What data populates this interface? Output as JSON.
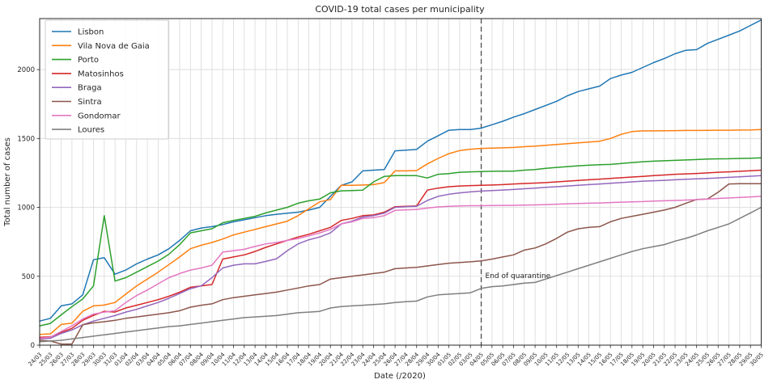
{
  "figure": {
    "title": "COVID-19 total cases per municipality",
    "xlabel": "Date (/2020)",
    "ylabel": "Total number of cases",
    "background_color": "#ffffff",
    "grid_color": "#d9d9d9",
    "spine_color": "#262626",
    "text_color": "#262626"
  },
  "chart_data": {
    "type": "line",
    "title": "COVID-19 total cases per municipality",
    "xlabel": "Date (/2020)",
    "ylabel": "Total number of cases",
    "grid": true,
    "legend_position": "upper left",
    "ylim": [
      0,
      2370
    ],
    "yticks": [
      0,
      500,
      1000,
      1500,
      2000
    ],
    "vline": {
      "x": "04/05",
      "label": "End of quarantine",
      "style": "dashed",
      "color": "#4d4d4d"
    },
    "x": [
      "24/03",
      "25/03",
      "26/03",
      "27/03",
      "28/03",
      "29/03",
      "30/03",
      "31/03",
      "01/04",
      "02/04",
      "03/04",
      "04/04",
      "05/04",
      "06/04",
      "07/04",
      "08/04",
      "09/04",
      "10/04",
      "11/04",
      "12/04",
      "13/04",
      "14/04",
      "15/04",
      "16/04",
      "17/04",
      "18/04",
      "19/04",
      "20/04",
      "21/04",
      "22/04",
      "23/04",
      "24/04",
      "25/04",
      "26/04",
      "27/04",
      "28/04",
      "29/04",
      "30/04",
      "01/05",
      "02/05",
      "03/05",
      "04/05",
      "05/05",
      "06/05",
      "07/05",
      "08/05",
      "09/05",
      "10/05",
      "11/05",
      "12/05",
      "13/05",
      "14/05",
      "15/05",
      "16/05",
      "17/05",
      "18/05",
      "19/05",
      "20/05",
      "21/05",
      "22/05",
      "23/05",
      "24/05",
      "25/05",
      "26/05",
      "27/05",
      "28/05",
      "29/05",
      "30/05"
    ],
    "series": [
      {
        "name": "Lisbon",
        "color": "#1f77b4",
        "values": [
          175,
          195,
          285,
          300,
          365,
          620,
          635,
          515,
          545,
          590,
          625,
          655,
          700,
          760,
          830,
          850,
          860,
          875,
          895,
          910,
          925,
          940,
          950,
          958,
          965,
          980,
          1000,
          1080,
          1160,
          1185,
          1265,
          1270,
          1275,
          1410,
          1415,
          1420,
          1480,
          1520,
          1560,
          1565,
          1565,
          1575,
          1600,
          1625,
          1655,
          1680,
          1710,
          1740,
          1770,
          1810,
          1840,
          1860,
          1880,
          1935,
          1960,
          1980,
          2015,
          2050,
          2080,
          2115,
          2140,
          2145,
          2190,
          2220,
          2250,
          2280,
          2320,
          2360
        ]
      },
      {
        "name": "Vila Nova de Gaia",
        "color": "#ff7f0e",
        "values": [
          78,
          82,
          150,
          160,
          246,
          285,
          291,
          310,
          370,
          430,
          480,
          530,
          585,
          640,
          700,
          725,
          745,
          770,
          800,
          820,
          840,
          860,
          880,
          900,
          940,
          990,
          1040,
          1057,
          1160,
          1160,
          1162,
          1165,
          1180,
          1265,
          1265,
          1267,
          1315,
          1355,
          1390,
          1412,
          1422,
          1428,
          1430,
          1432,
          1435,
          1440,
          1445,
          1450,
          1456,
          1462,
          1468,
          1474,
          1480,
          1500,
          1530,
          1550,
          1555,
          1555,
          1556,
          1557,
          1558,
          1558,
          1559,
          1560,
          1560,
          1561,
          1562,
          1565
        ]
      },
      {
        "name": "Porto",
        "color": "#2ca02c",
        "values": [
          140,
          158,
          220,
          280,
          335,
          430,
          940,
          465,
          490,
          530,
          570,
          610,
          660,
          730,
          815,
          830,
          845,
          888,
          905,
          920,
          935,
          960,
          980,
          1000,
          1030,
          1048,
          1060,
          1106,
          1120,
          1122,
          1125,
          1185,
          1225,
          1230,
          1230,
          1230,
          1213,
          1240,
          1245,
          1255,
          1258,
          1260,
          1262,
          1263,
          1263,
          1270,
          1275,
          1283,
          1290,
          1296,
          1302,
          1306,
          1310,
          1312,
          1318,
          1325,
          1331,
          1335,
          1338,
          1341,
          1344,
          1347,
          1351,
          1352,
          1353,
          1355,
          1357,
          1360
        ]
      },
      {
        "name": "Matosinhos",
        "color": "#d62728",
        "values": [
          57,
          60,
          92,
          122,
          180,
          216,
          246,
          240,
          270,
          290,
          310,
          330,
          355,
          385,
          420,
          430,
          440,
          625,
          640,
          655,
          680,
          710,
          735,
          760,
          785,
          805,
          830,
          855,
          905,
          920,
          940,
          945,
          965,
          1005,
          1008,
          1010,
          1125,
          1140,
          1150,
          1155,
          1158,
          1160,
          1162,
          1165,
          1170,
          1173,
          1176,
          1180,
          1185,
          1190,
          1195,
          1200,
          1205,
          1210,
          1215,
          1220,
          1225,
          1230,
          1235,
          1240,
          1243,
          1246,
          1250,
          1255,
          1258,
          1262,
          1266,
          1270
        ]
      },
      {
        "name": "Braga",
        "color": "#9467bd",
        "values": [
          45,
          50,
          85,
          110,
          148,
          175,
          195,
          215,
          240,
          260,
          285,
          310,
          340,
          375,
          410,
          430,
          490,
          560,
          580,
          590,
          590,
          608,
          627,
          686,
          735,
          765,
          785,
          815,
          880,
          900,
          930,
          940,
          958,
          1000,
          1005,
          1008,
          1050,
          1080,
          1095,
          1105,
          1112,
          1118,
          1122,
          1126,
          1130,
          1135,
          1140,
          1145,
          1150,
          1155,
          1160,
          1165,
          1170,
          1175,
          1180,
          1185,
          1190,
          1193,
          1196,
          1200,
          1204,
          1207,
          1210,
          1214,
          1218,
          1222,
          1226,
          1230
        ]
      },
      {
        "name": "Sintra",
        "color": "#8c564b",
        "values": [
          35,
          30,
          8,
          8,
          148,
          162,
          170,
          180,
          195,
          205,
          215,
          225,
          235,
          250,
          276,
          290,
          300,
          330,
          345,
          355,
          365,
          375,
          385,
          400,
          415,
          430,
          440,
          480,
          490,
          500,
          510,
          520,
          530,
          555,
          560,
          565,
          575,
          585,
          595,
          600,
          605,
          612,
          625,
          640,
          655,
          690,
          705,
          735,
          775,
          820,
          845,
          855,
          860,
          895,
          920,
          935,
          950,
          965,
          980,
          1000,
          1030,
          1057,
          1060,
          1110,
          1170,
          1172,
          1172,
          1172
        ]
      },
      {
        "name": "Gondomar",
        "color": "#e377c2",
        "values": [
          50,
          58,
          100,
          140,
          190,
          225,
          240,
          250,
          310,
          360,
          400,
          445,
          490,
          520,
          545,
          560,
          580,
          675,
          686,
          696,
          716,
          735,
          745,
          760,
          774,
          793,
          815,
          840,
          880,
          895,
          920,
          925,
          940,
          978,
          982,
          985,
          995,
          1003,
          1008,
          1010,
          1012,
          1012,
          1013,
          1014,
          1015,
          1016,
          1018,
          1020,
          1023,
          1026,
          1028,
          1030,
          1032,
          1035,
          1038,
          1040,
          1042,
          1046,
          1048,
          1050,
          1053,
          1056,
          1060,
          1065,
          1068,
          1072,
          1076,
          1080
        ]
      },
      {
        "name": "Loures",
        "color": "#7f7f7f",
        "values": [
          25,
          30,
          35,
          45,
          55,
          65,
          75,
          85,
          95,
          105,
          115,
          125,
          135,
          140,
          150,
          160,
          170,
          180,
          190,
          200,
          205,
          210,
          215,
          225,
          235,
          240,
          245,
          270,
          280,
          285,
          290,
          295,
          300,
          310,
          315,
          320,
          350,
          365,
          370,
          375,
          380,
          412,
          425,
          430,
          440,
          450,
          455,
          480,
          505,
          530,
          555,
          580,
          605,
          630,
          655,
          680,
          700,
          715,
          730,
          755,
          775,
          800,
          830,
          855,
          880,
          920,
          960,
          1000
        ]
      }
    ]
  }
}
